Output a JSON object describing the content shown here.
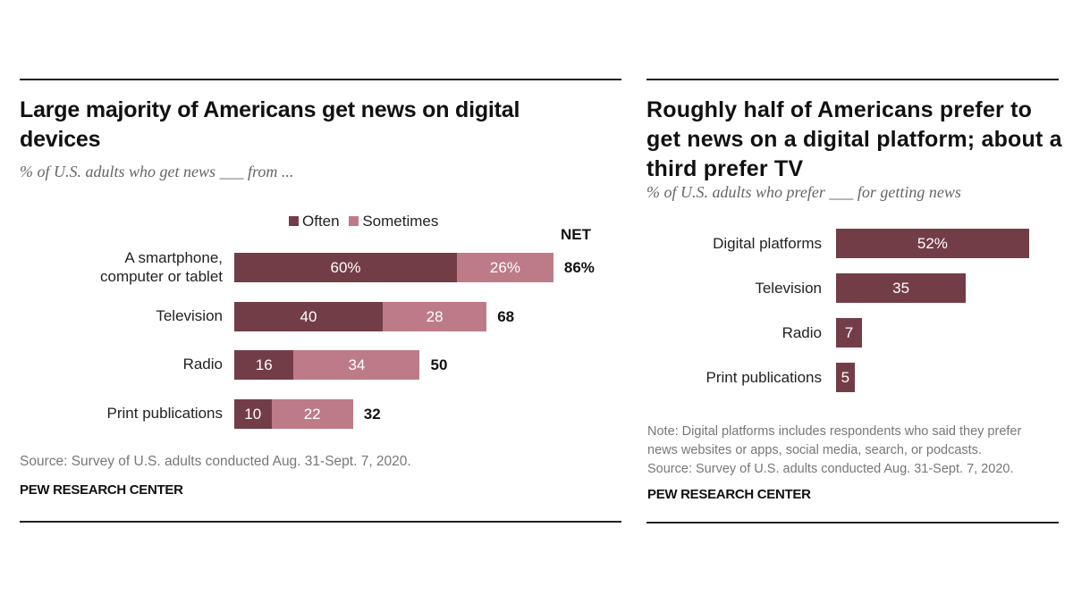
{
  "colors": {
    "often": "#733D47",
    "sometimes": "#BD7B87",
    "single": "#733D47"
  },
  "chart_data": [
    {
      "type": "bar",
      "orientation": "horizontal",
      "stacked": true,
      "title": "Large majority of Americans get news on digital devices",
      "subtitle": "% of U.S. adults who get news ___ from ...",
      "categories": [
        "A smartphone, computer or tablet",
        "Television",
        "Radio",
        "Print publications"
      ],
      "category_lines": [
        [
          "A smartphone,",
          "computer or tablet"
        ],
        [
          "Television"
        ],
        [
          "Radio"
        ],
        [
          "Print publications"
        ]
      ],
      "series": [
        {
          "name": "Often",
          "values": [
            60,
            40,
            16,
            10
          ]
        },
        {
          "name": "Sometimes",
          "values": [
            26,
            28,
            34,
            22
          ]
        }
      ],
      "value_labels": [
        [
          "60%",
          "40",
          "16",
          "10"
        ],
        [
          "26%",
          "28",
          "34",
          "22"
        ]
      ],
      "net_header": "NET",
      "net": [
        86,
        68,
        50,
        32
      ],
      "net_labels": [
        "86%",
        "68",
        "50",
        "32"
      ],
      "legend": [
        "Often",
        "Sometimes"
      ],
      "legend_position": "top",
      "xlim": [
        0,
        100
      ],
      "grid": false,
      "notes": [
        "Source: Survey of U.S. adults conducted Aug. 31-Sept. 7, 2020."
      ],
      "brand": "PEW RESEARCH CENTER"
    },
    {
      "type": "bar",
      "orientation": "horizontal",
      "title": "Roughly half of Americans prefer to get news on a digital platform; about a third prefer TV",
      "subtitle": "% of U.S. adults who prefer ___ for getting news",
      "categories": [
        "Digital platforms",
        "Television",
        "Radio",
        "Print publications"
      ],
      "values": [
        52,
        35,
        7,
        5
      ],
      "value_labels": [
        "52%",
        "35",
        "7",
        "5"
      ],
      "xlim": [
        0,
        100
      ],
      "grid": false,
      "notes": [
        "Note: Digital platforms includes respondents who said they prefer",
        "news websites or apps, social media, search, or podcasts.",
        "Source: Survey of U.S. adults conducted Aug. 31-Sept. 7, 2020."
      ],
      "brand": "PEW RESEARCH CENTER"
    }
  ]
}
